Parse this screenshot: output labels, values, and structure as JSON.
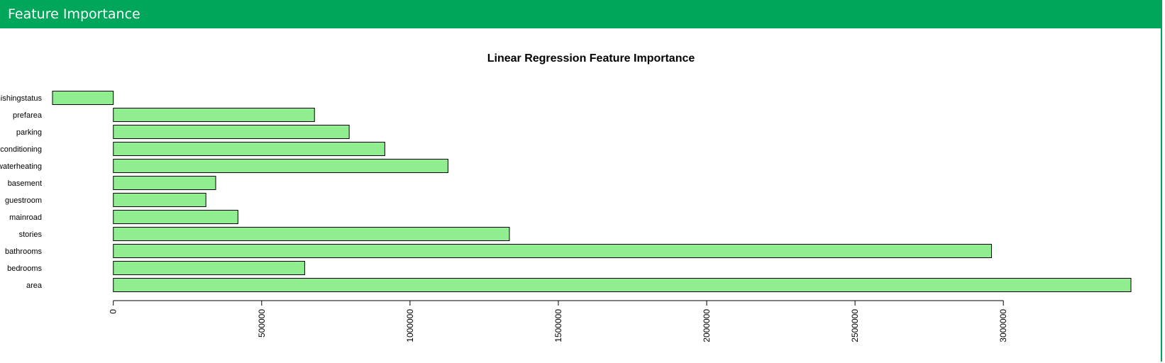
{
  "panel": {
    "title": "Feature Importance"
  },
  "chart_data": {
    "type": "bar",
    "orientation": "horizontal",
    "title": "Linear Regression Feature Importance",
    "xlabel": "",
    "ylabel": "",
    "categories": [
      "area",
      "bedrooms",
      "bathrooms",
      "stories",
      "mainroad",
      "guestroom",
      "basement",
      "hotwaterheating",
      "airconditioning",
      "parking",
      "prefarea",
      "furnishingstatus"
    ],
    "values": [
      3430000,
      645000,
      2960000,
      1335000,
      420000,
      312000,
      345000,
      1128000,
      915000,
      795000,
      678000,
      -205000
    ],
    "xlim": [
      -205000,
      3430000
    ],
    "xticks": [
      0,
      500000,
      1000000,
      1500000,
      2000000,
      2500000,
      3000000
    ],
    "xtick_labels": [
      "0",
      "500000",
      "1000000",
      "1500000",
      "2000000",
      "2500000",
      "3000000"
    ],
    "grid": false,
    "bar_color": "#90ee90",
    "bar_border_color": "#000000"
  }
}
